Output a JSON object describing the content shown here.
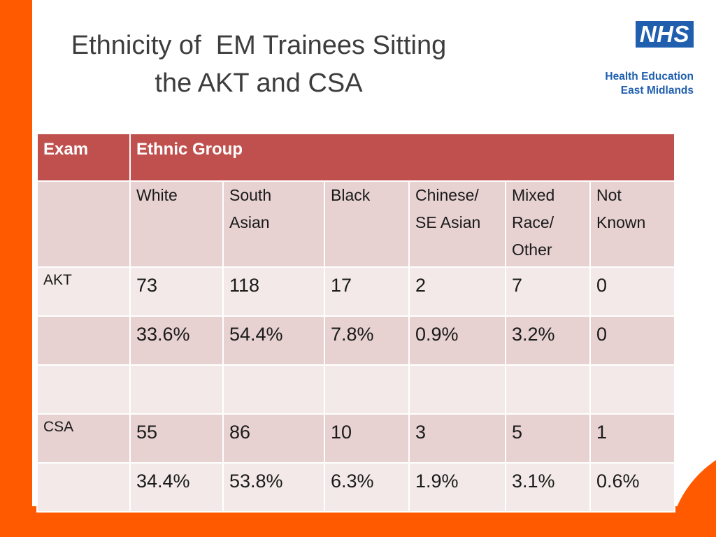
{
  "slide": {
    "title_line1": "Ethnicity of  EM Trainees Sitting",
    "title_line2": "the AKT and CSA"
  },
  "logo": {
    "badge": "NHS",
    "org_line1": "Health Education",
    "org_line2": "East Midlands"
  },
  "colors": {
    "frame_orange": "#ff5a00",
    "header_red": "#c0504d",
    "row_pink": "#e7d1d1",
    "row_light": "#f3e9e9",
    "nhs_blue": "#1f5fad"
  },
  "table": {
    "header": {
      "exam": "Exam",
      "group": "Ethnic Group"
    },
    "groups": [
      {
        "line1": "White",
        "line2": "",
        "line3": ""
      },
      {
        "line1": "South",
        "line2": "Asian",
        "line3": ""
      },
      {
        "line1": "Black",
        "line2": "",
        "line3": ""
      },
      {
        "line1": "Chinese/",
        "line2": "SE Asian",
        "line3": ""
      },
      {
        "line1": "Mixed",
        "line2": "Race/",
        "line3": "Other"
      },
      {
        "line1": "Not",
        "line2": "Known",
        "line3": ""
      }
    ],
    "akt": {
      "label": "AKT",
      "counts": [
        "73",
        "118",
        "17",
        "2",
        "7",
        "0"
      ],
      "percents": [
        "33.6%",
        "54.4%",
        "7.8%",
        "0.9%",
        "3.2%",
        "0"
      ]
    },
    "csa": {
      "label": "CSA",
      "counts": [
        "55",
        "86",
        "10",
        "3",
        "5",
        "1"
      ],
      "percents": [
        "34.4%",
        "53.8%",
        "6.3%",
        "1.9%",
        "3.1%",
        "0.6%"
      ]
    }
  }
}
